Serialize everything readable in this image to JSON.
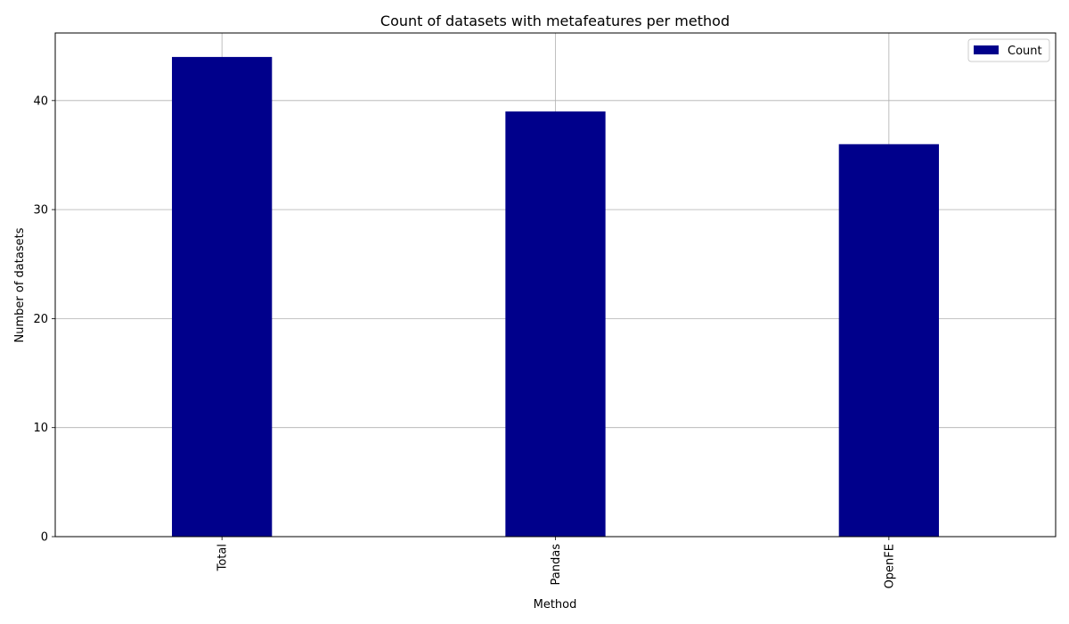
{
  "chart_data": {
    "type": "bar",
    "title": "Count of datasets with metafeatures per method",
    "xlabel": "Method",
    "ylabel": "Number of datasets",
    "categories": [
      "Total",
      "Pandas",
      "OpenFE"
    ],
    "series": [
      {
        "name": "Count",
        "values": [
          44,
          39,
          36
        ],
        "color": "#00008b"
      }
    ],
    "ylim": [
      0,
      46.2
    ],
    "yticks": [
      0,
      10,
      20,
      30,
      40
    ],
    "grid": true,
    "legend_position": "top-right",
    "x_tick_rotation": "vertical"
  }
}
